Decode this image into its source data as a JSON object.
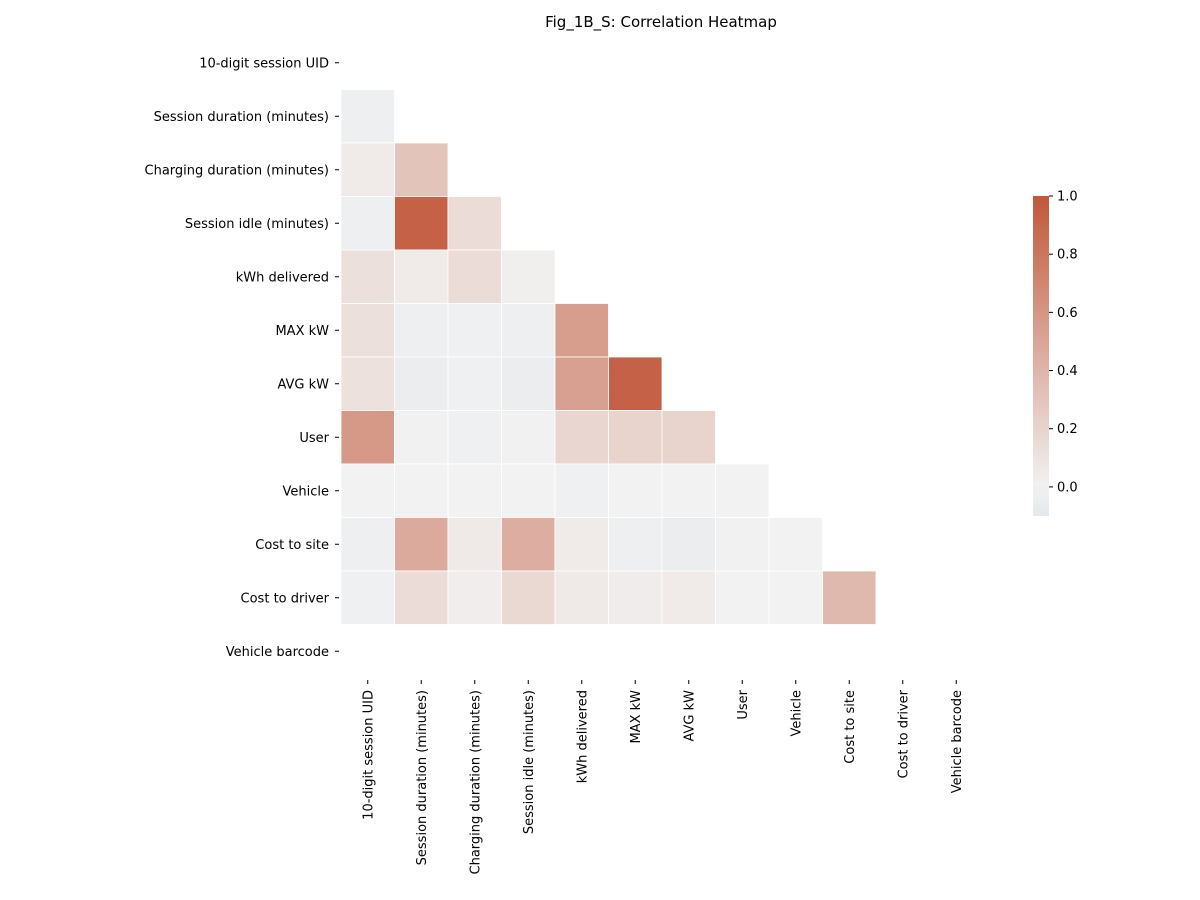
{
  "chart_data": {
    "type": "heatmap",
    "title": "Fig_1B_S: Correlation Heatmap",
    "variables": [
      "10-digit session UID",
      "Session duration (minutes)",
      "Charging duration (minutes)",
      "Session idle (minutes)",
      "kWh delivered",
      "MAX kW",
      "AVG kW",
      "User",
      "Vehicle",
      "Cost to site",
      "Cost to driver",
      "Vehicle barcode"
    ],
    "lower_triangle_values": [
      [],
      [
        -0.03
      ],
      [
        0.05,
        0.3
      ],
      [
        -0.03,
        0.94,
        0.14
      ],
      [
        0.12,
        0.05,
        0.14,
        0.02
      ],
      [
        0.12,
        -0.03,
        -0.02,
        -0.03,
        0.55
      ],
      [
        0.11,
        -0.05,
        -0.02,
        -0.05,
        0.53,
        0.94
      ],
      [
        0.58,
        -0.01,
        -0.02,
        -0.01,
        0.18,
        0.2,
        0.2
      ],
      [
        0.0,
        0.0,
        0.0,
        0.0,
        -0.02,
        0.0,
        0.0,
        0.0
      ],
      [
        -0.03,
        0.47,
        0.06,
        0.45,
        0.05,
        -0.03,
        -0.05,
        -0.01,
        0.0
      ],
      [
        -0.02,
        0.14,
        0.03,
        0.17,
        0.06,
        0.04,
        0.05,
        0.0,
        0.0,
        0.37
      ],
      []
    ],
    "colorbar": {
      "min": -0.1,
      "max": 1.0,
      "ticks": [
        "1.0",
        "0.8",
        "0.6",
        "0.4",
        "0.2",
        "0.0"
      ],
      "colors": {
        "low": "#e4e8ec",
        "mid": "#f2f2f2",
        "high": "#c1583b"
      }
    },
    "mask": "upper-triangle-and-diagonal",
    "grid": false,
    "legend": "right"
  }
}
